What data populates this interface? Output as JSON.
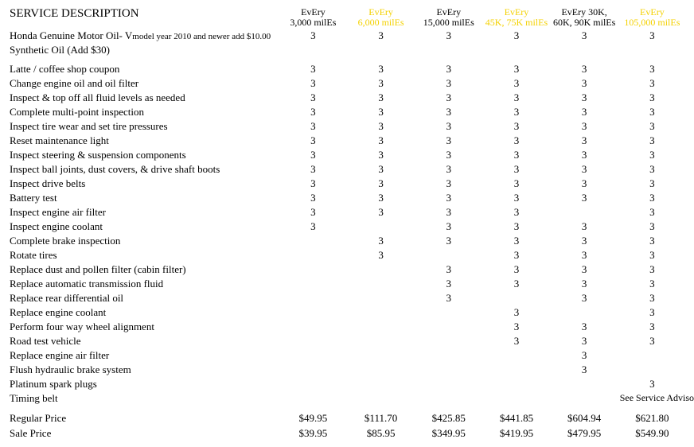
{
  "header": {
    "title": "SERVICE DESCRIPTION",
    "columns": [
      {
        "line1": "EvEry",
        "line2": "3,000 milEs",
        "yellow": false
      },
      {
        "line1": "EvEry",
        "line2": "6,000 milEs",
        "yellow": true
      },
      {
        "line1": "EvEry",
        "line2": "15,000 milEs",
        "yellow": false
      },
      {
        "line1": "EvEry",
        "line2": "45K, 75K milEs",
        "yellow": true
      },
      {
        "line1": "EvEry 30K,",
        "line2": "60K, 90K milEs",
        "yellow": false
      },
      {
        "line1": "EvEry",
        "line2": "105,000 milEs",
        "yellow": true
      }
    ]
  },
  "oil_row": {
    "label": "Honda Genuine Motor Oil-  V",
    "note": "model year 2010 and newer add $10.00",
    "marks": [
      "3",
      "3",
      "3",
      "3",
      "3",
      "3"
    ]
  },
  "synthetic_label": "Synthetic Oil (Add $30)",
  "rows": [
    {
      "label": "Latte / coffee shop coupon",
      "marks": [
        "3",
        "3",
        "3",
        "3",
        "3",
        "3"
      ]
    },
    {
      "label": "Change engine oil and oil filter",
      "marks": [
        "3",
        "3",
        "3",
        "3",
        "3",
        "3"
      ]
    },
    {
      "label": "Inspect & top off all fluid levels as needed",
      "marks": [
        "3",
        "3",
        "3",
        "3",
        "3",
        "3"
      ]
    },
    {
      "label": "Complete multi-point inspection",
      "marks": [
        "3",
        "3",
        "3",
        "3",
        "3",
        "3"
      ]
    },
    {
      "label": "Inspect tire wear and set tire pressures",
      "marks": [
        "3",
        "3",
        "3",
        "3",
        "3",
        "3"
      ]
    },
    {
      "label": "Reset maintenance light",
      "marks": [
        "3",
        "3",
        "3",
        "3",
        "3",
        "3"
      ]
    },
    {
      "label": "Inspect steering & suspension components",
      "marks": [
        "3",
        "3",
        "3",
        "3",
        "3",
        "3"
      ]
    },
    {
      "label": "Inspect ball joints, dust covers, & drive shaft boots",
      "marks": [
        "3",
        "3",
        "3",
        "3",
        "3",
        "3"
      ]
    },
    {
      "label": "Inspect drive belts",
      "marks": [
        "3",
        "3",
        "3",
        "3",
        "3",
        "3"
      ]
    },
    {
      "label": "Battery test",
      "marks": [
        "3",
        "3",
        "3",
        "3",
        "3",
        "3"
      ]
    },
    {
      "label": "Inspect engine air filter",
      "marks": [
        "3",
        "3",
        "3",
        "3",
        "",
        "3"
      ]
    },
    {
      "label": "Inspect engine coolant",
      "marks": [
        "3",
        "",
        "3",
        "3",
        "3",
        "3"
      ]
    },
    {
      "label": "Complete brake inspection",
      "marks": [
        "",
        "3",
        "3",
        "3",
        "3",
        "3"
      ]
    },
    {
      "label": "Rotate tires",
      "marks": [
        "",
        "3",
        "",
        "3",
        "3",
        "3"
      ]
    },
    {
      "label": "Replace dust and pollen filter (cabin filter)",
      "marks": [
        "",
        "",
        "3",
        "3",
        "3",
        "3"
      ]
    },
    {
      "label": "Replace automatic transmission fluid",
      "marks": [
        "",
        "",
        "3",
        "3",
        "3",
        "3"
      ]
    },
    {
      "label": "Replace rear differential oil",
      "marks": [
        "",
        "",
        "3",
        "",
        "3",
        "3"
      ]
    },
    {
      "label": "Replace engine coolant",
      "marks": [
        "",
        "",
        "",
        "3",
        "",
        "3"
      ]
    },
    {
      "label": "Perform four way wheel alignment",
      "marks": [
        "",
        "",
        "",
        "3",
        "3",
        "3"
      ]
    },
    {
      "label": "Road test vehicle",
      "marks": [
        "",
        "",
        "",
        "3",
        "3",
        "3"
      ]
    },
    {
      "label": "Replace engine air filter",
      "marks": [
        "",
        "",
        "",
        "",
        "3",
        ""
      ]
    },
    {
      "label": "Flush hydraulic brake system",
      "marks": [
        "",
        "",
        "",
        "",
        "3",
        ""
      ]
    },
    {
      "label": "Platinum spark plugs",
      "marks": [
        "",
        "",
        "",
        "",
        "",
        "3"
      ]
    },
    {
      "label": "Timing belt",
      "marks": [
        "",
        "",
        "",
        "",
        "",
        "See Service Advisor"
      ]
    }
  ],
  "prices": [
    {
      "label": "Regular Price",
      "values": [
        "$49.95",
        "$111.70",
        "$425.85",
        "$441.85",
        "$604.94",
        "$621.80"
      ]
    },
    {
      "label": "Sale Price",
      "values": [
        "$39.95",
        "$85.95",
        "$349.95",
        "$419.95",
        "$479.95",
        "$549.90"
      ]
    }
  ]
}
